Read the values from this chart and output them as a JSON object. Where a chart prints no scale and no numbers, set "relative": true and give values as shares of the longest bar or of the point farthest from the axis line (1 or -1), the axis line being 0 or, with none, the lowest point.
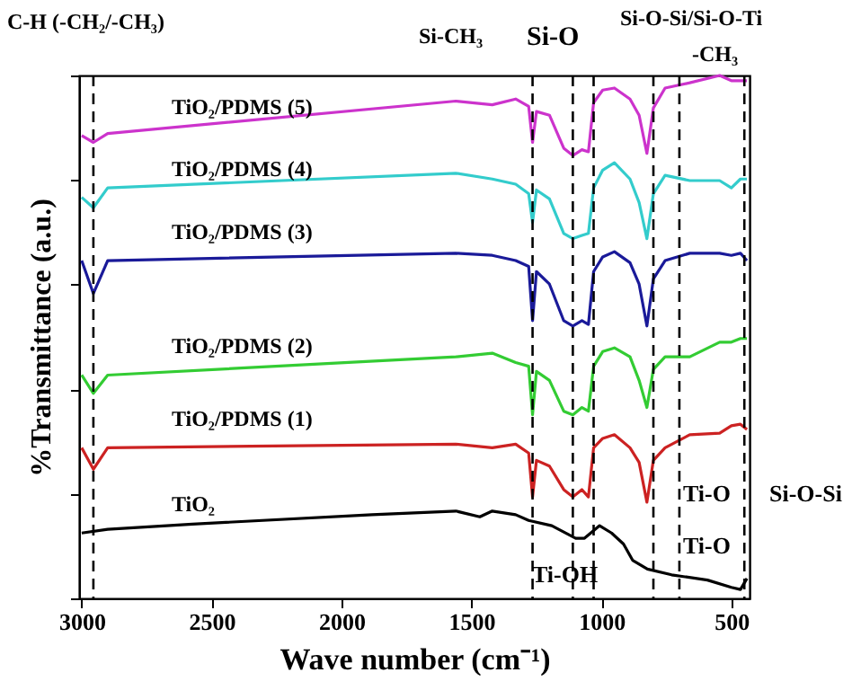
{
  "chart_data": {
    "type": "line",
    "xlabel": "Wave number (cm⁻¹)",
    "ylabel": "%Transmittance (a.u.)",
    "relative": true,
    "xlim": [
      3010,
      430
    ],
    "xticks": [
      3000,
      2500,
      2000,
      1500,
      1000,
      500
    ],
    "x": [
      3000,
      2955,
      2900,
      1560,
      1420,
      1330,
      1280,
      1265,
      1250,
      1200,
      1145,
      1110,
      1075,
      1050,
      1030,
      995,
      950,
      890,
      855,
      825,
      800,
      755,
      660,
      545,
      500,
      465,
      440
    ],
    "series": [
      {
        "name": "TiO₂/PDMS (5)",
        "color": "#cc33cc",
        "values": [
          0.885,
          0.872,
          0.889,
          0.951,
          0.944,
          0.955,
          0.941,
          0.872,
          0.931,
          0.924,
          0.861,
          0.847,
          0.858,
          0.854,
          0.948,
          0.972,
          0.976,
          0.955,
          0.924,
          0.851,
          0.938,
          0.976,
          0.986,
          1,
          0.99,
          0.99,
          0.99
        ]
      },
      {
        "name": "TiO₂/PDMS (4)",
        "color": "#33cccc",
        "values": [
          0.767,
          0.747,
          0.785,
          0.813,
          0.802,
          0.792,
          0.774,
          0.719,
          0.781,
          0.764,
          0.698,
          0.688,
          0.694,
          0.698,
          0.785,
          0.819,
          0.833,
          0.802,
          0.757,
          0.688,
          0.774,
          0.809,
          0.799,
          0.799,
          0.785,
          0.802,
          0.802
        ]
      },
      {
        "name": "TiO₂/PDMS (3)",
        "color": "#1a1a99",
        "values": [
          0.646,
          0.583,
          0.646,
          0.66,
          0.656,
          0.646,
          0.635,
          0.531,
          0.625,
          0.601,
          0.531,
          0.521,
          0.531,
          0.524,
          0.625,
          0.653,
          0.663,
          0.642,
          0.601,
          0.521,
          0.611,
          0.646,
          0.66,
          0.66,
          0.656,
          0.66,
          0.646
        ]
      },
      {
        "name": "TiO₂/PDMS (2)",
        "color": "#33cc33",
        "values": [
          0.427,
          0.392,
          0.427,
          0.462,
          0.469,
          0.451,
          0.444,
          0.351,
          0.434,
          0.417,
          0.358,
          0.351,
          0.365,
          0.358,
          0.444,
          0.472,
          0.479,
          0.462,
          0.417,
          0.365,
          0.438,
          0.462,
          0.462,
          0.49,
          0.49,
          0.497,
          0.497
        ]
      },
      {
        "name": "TiO₂/PDMS (1)",
        "color": "#cc2222",
        "values": [
          0.288,
          0.247,
          0.288,
          0.295,
          0.288,
          0.295,
          0.278,
          0.194,
          0.264,
          0.253,
          0.208,
          0.194,
          0.208,
          0.194,
          0.288,
          0.306,
          0.313,
          0.288,
          0.26,
          0.184,
          0.264,
          0.288,
          0.313,
          0.316,
          0.33,
          0.333,
          0.323
        ]
      },
      {
        "name": "TiO₂",
        "color": "#000000",
        "x": [
          3000,
          2900,
          2574,
          1883,
          1560,
          1468,
          1420,
          1330,
          1280,
          1191,
          1099,
          1065,
          1007,
          961,
          915,
          880,
          823,
          730,
          592,
          500,
          465,
          440
        ],
        "values": [
          0.125,
          0.132,
          0.142,
          0.16,
          0.167,
          0.156,
          0.167,
          0.16,
          0.149,
          0.139,
          0.115,
          0.115,
          0.139,
          0.125,
          0.104,
          0.073,
          0.056,
          0.045,
          0.035,
          0.021,
          0.017,
          0.038
        ]
      }
    ],
    "ref_lines": [
      {
        "axis": "x",
        "value": 2955,
        "line_style": "dashed",
        "color": "#000000"
      },
      {
        "axis": "x",
        "value": 1265,
        "line_style": "dashed",
        "color": "#000000"
      },
      {
        "axis": "x",
        "value": 1110,
        "line_style": "dashed",
        "color": "#000000"
      },
      {
        "axis": "x",
        "value": 1030,
        "line_style": "dashed",
        "color": "#000000"
      },
      {
        "axis": "x",
        "value": 800,
        "line_style": "dashed",
        "color": "#000000"
      },
      {
        "axis": "x",
        "value": 700,
        "line_style": "dashed",
        "color": "#000000"
      },
      {
        "axis": "x",
        "value": 450,
        "line_style": "dashed",
        "color": "#000000"
      }
    ],
    "annotations": [
      "C-H (-CH₂/-CH₃)",
      "Si-CH₃",
      "Si-O",
      "Si-O-Si/Si-O-Ti",
      "-CH₃",
      "Ti-O",
      "Ti-OH",
      "Ti-O",
      "Si-O-Si"
    ],
    "legend": false,
    "grid": false,
    "line_style": "solid",
    "marker": "none"
  }
}
